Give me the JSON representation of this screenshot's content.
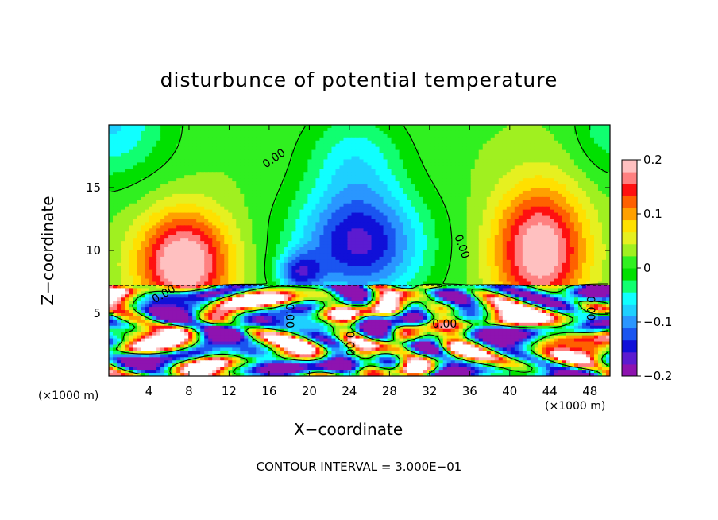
{
  "chart_data": {
    "type": "heatmap",
    "title": "disturbunce of potential temperature",
    "xlabel": "X−coordinate",
    "ylabel": "Z−coordinate",
    "x_unit_left": "(×1000 m)",
    "x_unit_right": "(×1000 m)",
    "footer": "CONTOUR INTERVAL = 3.000E−01",
    "xlim": [
      0,
      50
    ],
    "ylim": [
      0,
      20
    ],
    "xticks": [
      4,
      8,
      12,
      16,
      20,
      24,
      28,
      32,
      36,
      40,
      44,
      48
    ],
    "yticks": [
      5,
      10,
      15
    ],
    "colorbar": {
      "range": [
        -0.2,
        0.2
      ],
      "ticks": [
        {
          "value": 0.2,
          "label": "0.2"
        },
        {
          "value": 0.1,
          "label": "0.1"
        },
        {
          "value": 0.0,
          "label": "0"
        },
        {
          "value": -0.1,
          "label": "−0.1"
        },
        {
          "value": -0.2,
          "label": "−0.2"
        }
      ],
      "colors": [
        "#8e13b0",
        "#5c1bd0",
        "#1010d8",
        "#1a55f0",
        "#2a96ff",
        "#1ed0ff",
        "#10ffff",
        "#10ff70",
        "#00e000",
        "#30f020",
        "#a0f020",
        "#e6f020",
        "#ffe000",
        "#ffa000",
        "#ff6000",
        "#ff1010",
        "#ff8080",
        "#ffc0c0"
      ]
    },
    "contour_labels": [
      {
        "x": 16.5,
        "z": 17.3,
        "text": "0.00",
        "angle": -35
      },
      {
        "x": 35.2,
        "z": 10.3,
        "text": "0.00",
        "angle": 70
      },
      {
        "x": 33.5,
        "z": 4.1,
        "text": "0.00",
        "angle": 0
      },
      {
        "x": 18.0,
        "z": 4.8,
        "text": "0.00",
        "angle": 90
      },
      {
        "x": 24.0,
        "z": 2.6,
        "text": "0.00",
        "angle": 90
      },
      {
        "x": 5.5,
        "z": 6.5,
        "text": "0.00",
        "angle": -30
      },
      {
        "x": 48.0,
        "z": 5.4,
        "text": "0.00",
        "angle": 90
      }
    ],
    "upper_field": [
      {
        "x": 25.0,
        "z": 10.5,
        "sx": 6.5,
        "sz": 4.5,
        "amp": -0.18
      },
      {
        "x": 19.0,
        "z": 8.2,
        "sx": 2.2,
        "sz": 1.6,
        "amp": -0.12
      },
      {
        "x": 24.5,
        "z": 17.5,
        "sx": 5.0,
        "sz": 4.0,
        "amp": -0.07
      },
      {
        "x": 7.5,
        "z": 9.0,
        "sx": 4.5,
        "sz": 4.0,
        "amp": 0.2
      },
      {
        "x": 43.0,
        "z": 10.0,
        "sx": 4.5,
        "sz": 5.0,
        "amp": 0.19
      },
      {
        "x": 0.0,
        "z": 20.0,
        "sx": 6.0,
        "sz": 4.5,
        "amp": -0.09
      },
      {
        "x": 50.0,
        "z": 20.0,
        "sx": 3.5,
        "sz": 4.0,
        "amp": -0.06
      }
    ]
  }
}
